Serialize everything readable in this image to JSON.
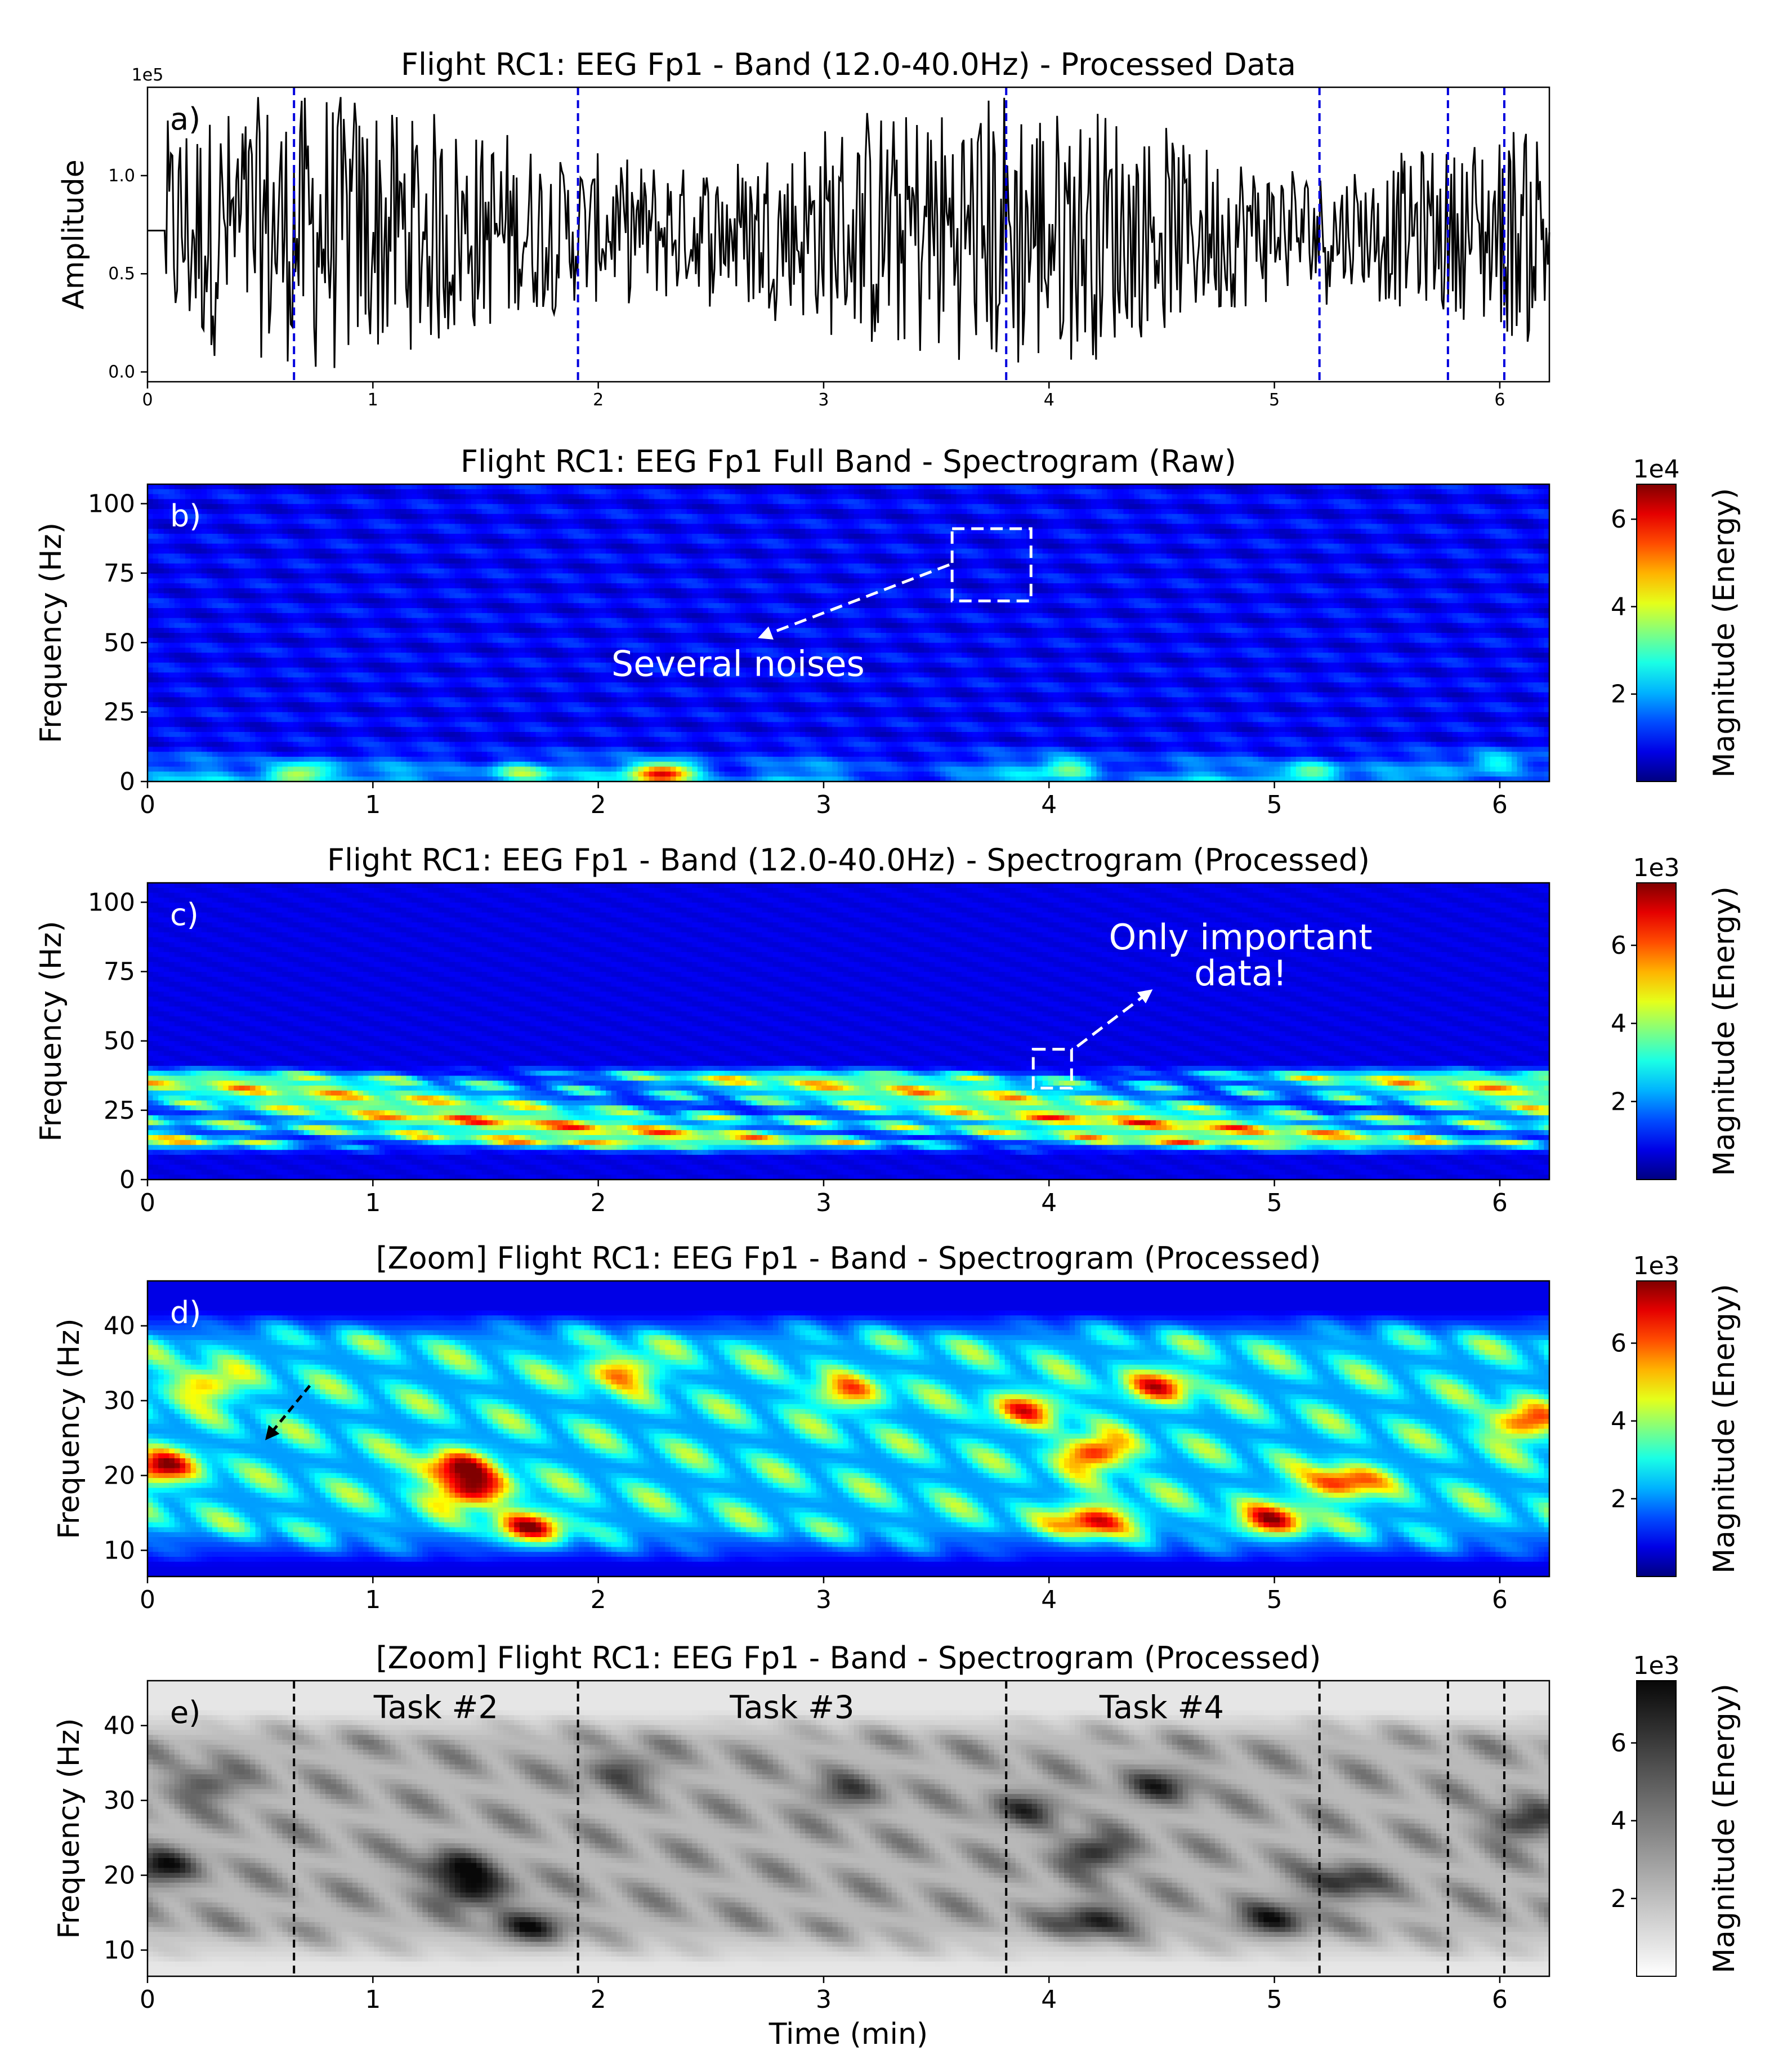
{
  "chart_data": [
    {
      "panel": "a)",
      "type": "line",
      "title": "Flight RC1: EEG Fp1  -  Band (12.0-40.0Hz) - Processed Data",
      "xlabel": "",
      "ylabel": "Amplitude",
      "y_scale_label": "1e5",
      "xlim": [
        0,
        6.22
      ],
      "ylim": [
        -0.05,
        1.45
      ],
      "xticks": [
        0,
        1,
        2,
        3,
        4,
        5,
        6
      ],
      "yticks": [
        0.0,
        0.5,
        1.0
      ],
      "ytick_labels": [
        "0.0",
        "0.5",
        "1.0"
      ],
      "signal_baseline": 0.72,
      "signal_range": [
        0.02,
        1.4
      ],
      "markers_min": [
        0.65,
        1.91,
        3.81,
        5.2,
        5.77,
        6.02
      ],
      "marker_color": "#0000dd",
      "line_color": "#000000"
    },
    {
      "panel": "b)",
      "type": "heatmap",
      "title": "Flight RC1: EEG Fp1 Full Band - Spectrogram (Raw)",
      "xlabel": "",
      "ylabel": "Frequency (Hz)",
      "xlim": [
        0,
        6.22
      ],
      "ylim": [
        0,
        107
      ],
      "xticks": [
        0,
        1,
        2,
        3,
        4,
        5,
        6
      ],
      "yticks": [
        0,
        25,
        50,
        75,
        100
      ],
      "colormap": "jet",
      "colorbar_label": "Magnitude (Energy)",
      "colorbar_scale": "1e4",
      "colorbar_ticks": [
        2,
        4,
        6
      ],
      "colorbar_max": 6.8,
      "hotspots": [
        {
          "t": 0.68,
          "f": 3,
          "v": 0.45
        },
        {
          "t": 1.65,
          "f": 3,
          "v": 0.35
        },
        {
          "t": 2.3,
          "f": 3,
          "v": 0.7
        },
        {
          "t": 4.1,
          "f": 5,
          "v": 0.3
        },
        {
          "t": 5.15,
          "f": 3,
          "v": 0.35
        },
        {
          "t": 6.0,
          "f": 7,
          "v": 0.25
        }
      ],
      "annotation": "Several noises",
      "annotation_box": {
        "t0": 3.57,
        "t1": 3.92,
        "f0": 65,
        "f1": 91
      }
    },
    {
      "panel": "c)",
      "type": "heatmap",
      "title": "Flight RC1: EEG Fp1  -  Band (12.0-40.0Hz) - Spectrogram (Processed)",
      "xlabel": "",
      "ylabel": "Frequency (Hz)",
      "xlim": [
        0,
        6.22
      ],
      "ylim": [
        0,
        107
      ],
      "xticks": [
        0,
        1,
        2,
        3,
        4,
        5,
        6
      ],
      "yticks": [
        0,
        25,
        50,
        75,
        100
      ],
      "colormap": "jet",
      "colorbar_label": "Magnitude (Energy)",
      "colorbar_scale": "1e3",
      "colorbar_ticks": [
        2,
        4,
        6
      ],
      "colorbar_max": 7.6,
      "band_hz": [
        12,
        40
      ],
      "annotation": "Only important\ndata!",
      "annotation_box": {
        "t0": 3.93,
        "t1": 4.1,
        "f0": 33,
        "f1": 47
      }
    },
    {
      "panel": "d)",
      "type": "heatmap",
      "title": "[Zoom] Flight RC1: EEG Fp1  -  Band - Spectrogram (Processed)",
      "xlabel": "",
      "ylabel": "Frequency (Hz)",
      "xlim": [
        0,
        6.22
      ],
      "ylim": [
        6.5,
        46
      ],
      "xticks": [
        0,
        1,
        2,
        3,
        4,
        5,
        6
      ],
      "yticks": [
        10,
        20,
        30,
        40
      ],
      "colormap": "jet",
      "colorbar_label": "Magnitude (Energy)",
      "colorbar_scale": "1e3",
      "colorbar_ticks": [
        2,
        4,
        6
      ],
      "colorbar_max": 7.6,
      "hotspots": [
        {
          "t": 0.05,
          "f": 21,
          "v": 0.8
        },
        {
          "t": 0.25,
          "f": 32,
          "v": 0.55
        },
        {
          "t": 1.45,
          "f": 18,
          "v": 0.9
        },
        {
          "t": 1.35,
          "f": 21,
          "v": 0.75
        },
        {
          "t": 1.7,
          "f": 13,
          "v": 0.7
        },
        {
          "t": 4.2,
          "f": 23,
          "v": 0.8
        },
        {
          "t": 4.2,
          "f": 14,
          "v": 0.85
        },
        {
          "t": 4.5,
          "f": 32,
          "v": 0.6
        },
        {
          "t": 5.3,
          "f": 19,
          "v": 0.75
        },
        {
          "t": 5.0,
          "f": 14,
          "v": 0.7
        },
        {
          "t": 6.1,
          "f": 27,
          "v": 0.7
        },
        {
          "t": 3.1,
          "f": 31,
          "v": 0.5
        },
        {
          "t": 3.9,
          "f": 29,
          "v": 0.55
        },
        {
          "t": 2.1,
          "f": 34,
          "v": 0.55
        }
      ]
    },
    {
      "panel": "e)",
      "type": "heatmap",
      "title": "[Zoom] Flight RC1: EEG Fp1  -  Band - Spectrogram (Processed)",
      "xlabel": "Time (min)",
      "ylabel": "Frequency (Hz)",
      "xlim": [
        0,
        6.22
      ],
      "ylim": [
        6.5,
        46
      ],
      "xticks": [
        0,
        1,
        2,
        3,
        4,
        5,
        6
      ],
      "yticks": [
        10,
        20,
        30,
        40
      ],
      "colormap": "gray_r",
      "colorbar_label": "Magnitude (Energy)",
      "colorbar_scale": "1e3",
      "colorbar_ticks": [
        2,
        4,
        6
      ],
      "colorbar_max": 7.6,
      "markers_min": [
        0.65,
        1.91,
        3.81,
        5.2,
        5.77,
        6.02
      ],
      "task_labels": [
        {
          "label": "Task #2",
          "t": 1.28
        },
        {
          "label": "Task #3",
          "t": 2.86
        },
        {
          "label": "Task #4",
          "t": 4.5
        }
      ]
    }
  ]
}
